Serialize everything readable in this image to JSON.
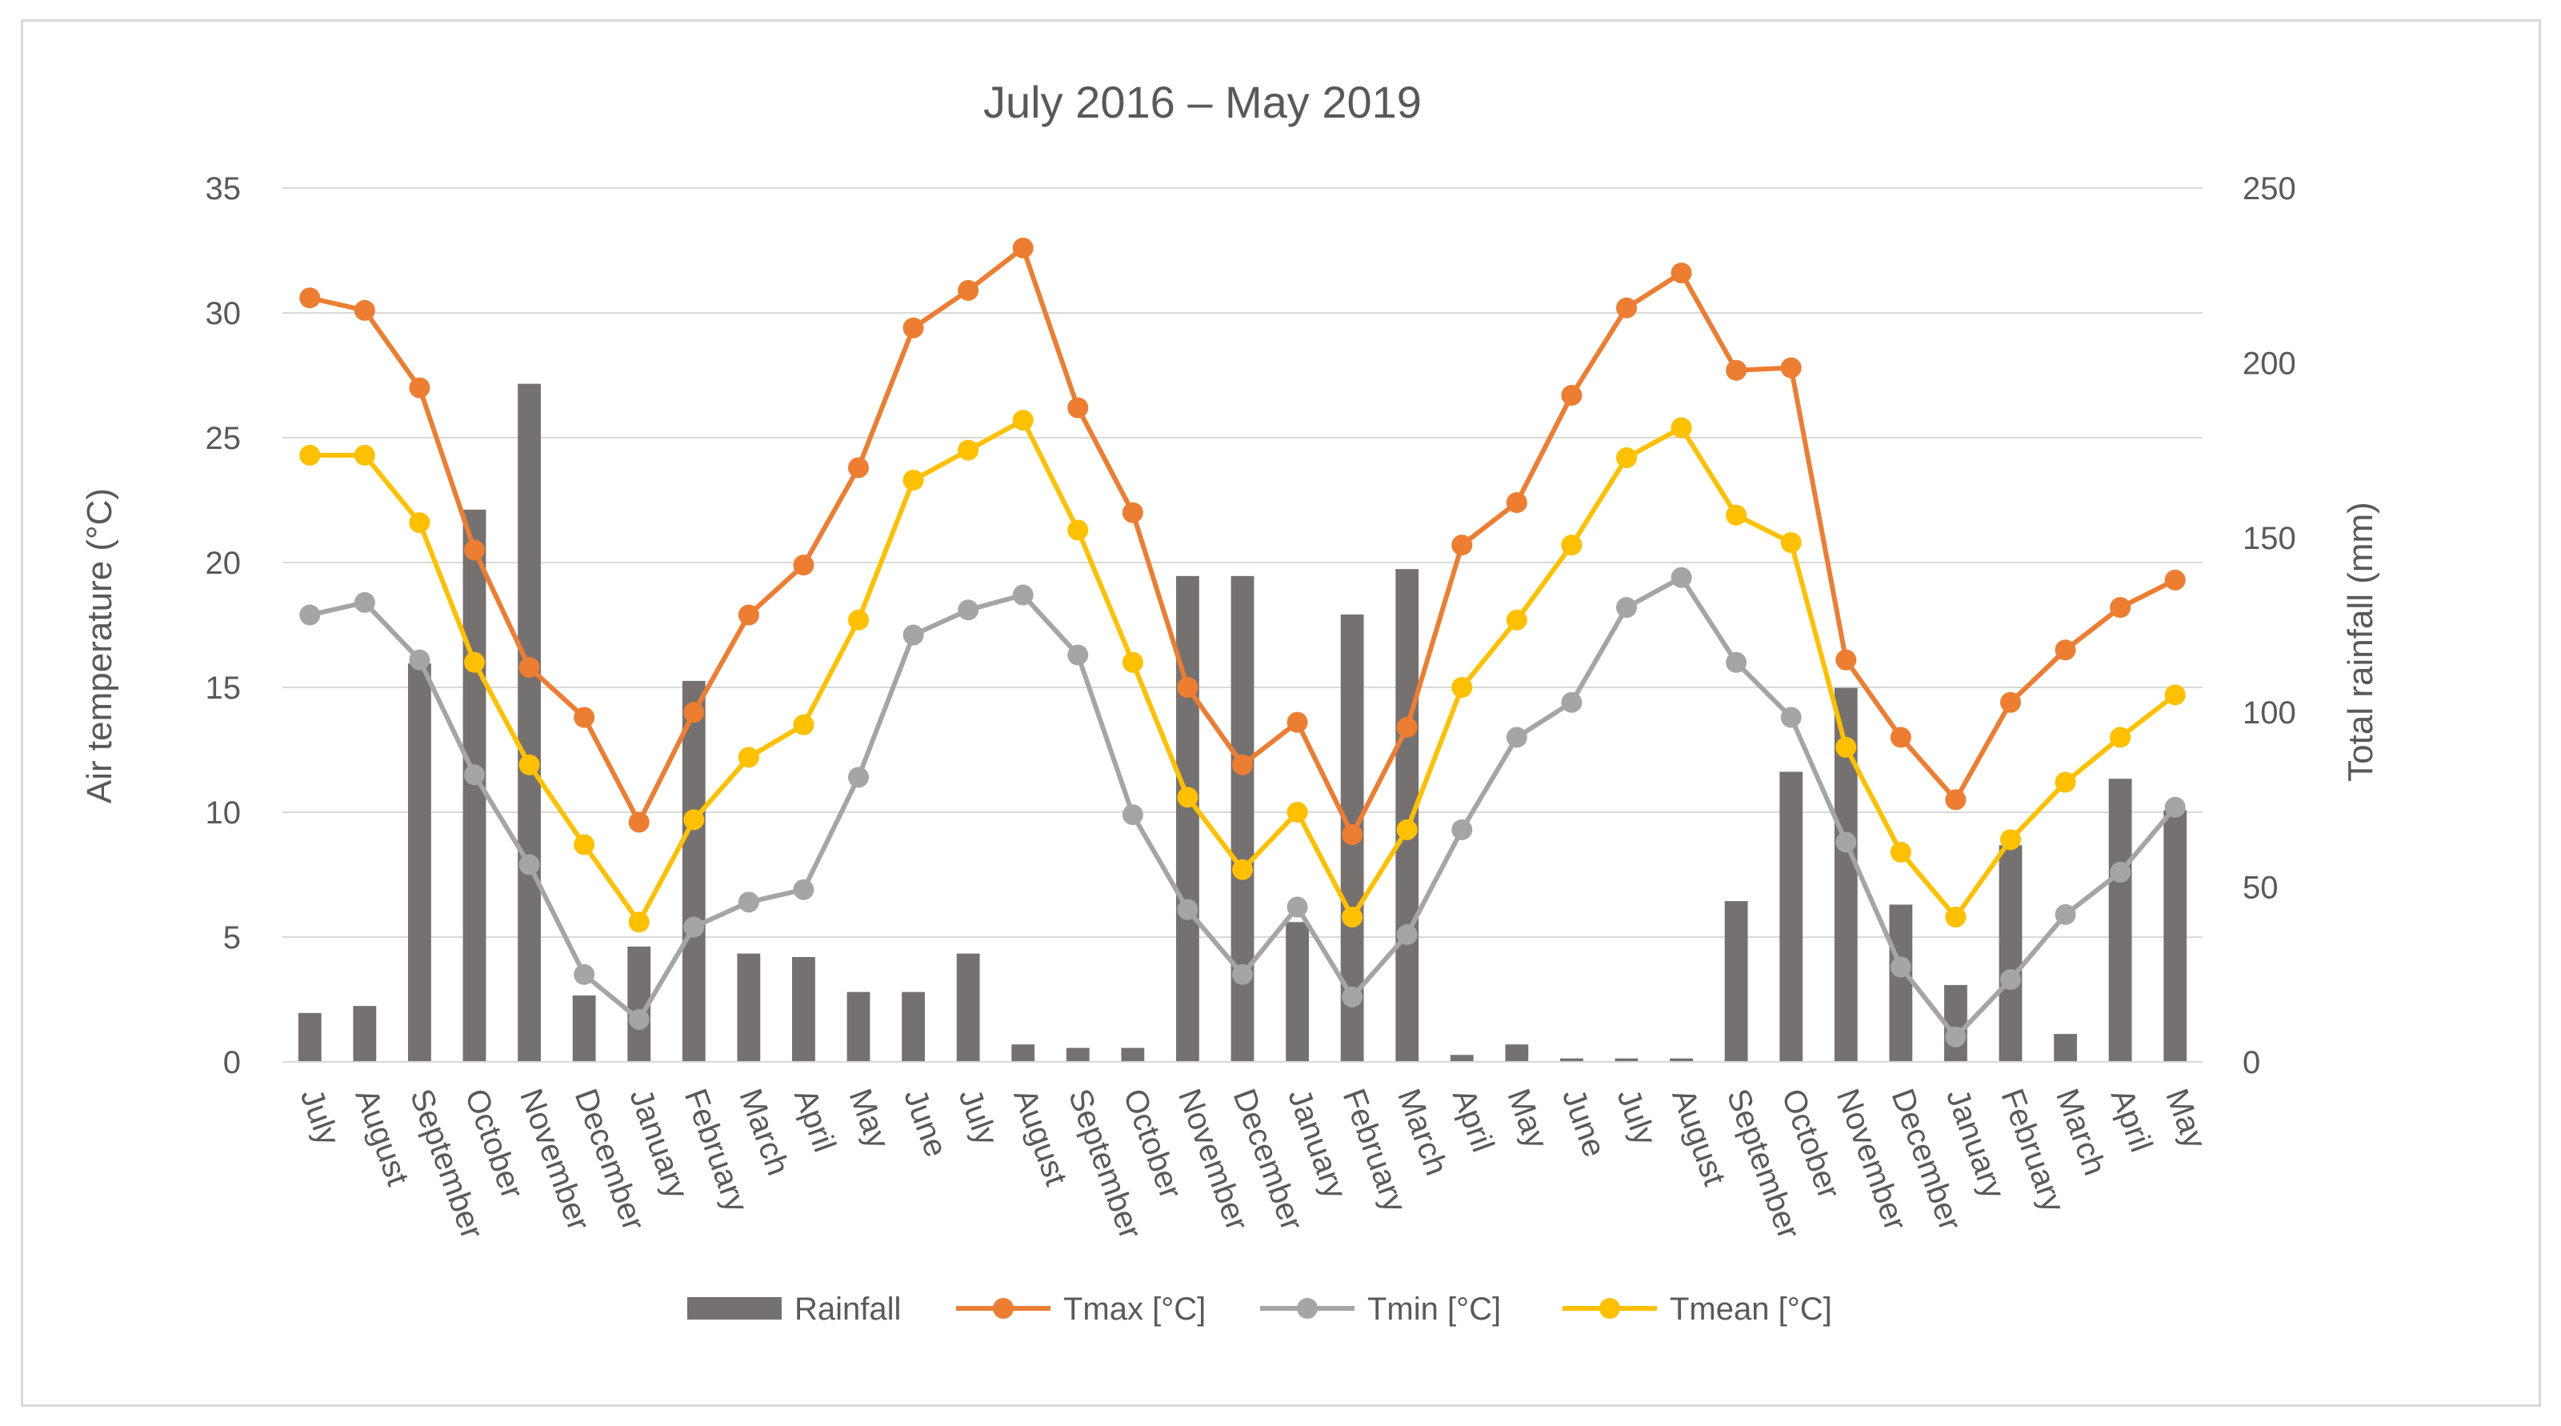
{
  "chart_data": {
    "type": "bar+line",
    "title": "July 2016 – May 2019",
    "ylabel_left": "Air temperature (°C)",
    "ylabel_right": "Total rainfall (mm)",
    "ylim_left": [
      0,
      35
    ],
    "ylim_right": [
      0,
      250
    ],
    "yticks_left": [
      "0",
      "5",
      "10",
      "15",
      "20",
      "25",
      "30",
      "35"
    ],
    "yticks_right": [
      "0",
      "50",
      "100",
      "150",
      "200",
      "250"
    ],
    "grid": true,
    "legend_position": "bottom",
    "categories": [
      "July",
      "August",
      "September",
      "October",
      "November",
      "December",
      "January",
      "February",
      "March",
      "April",
      "May",
      "June",
      "July",
      "August",
      "September",
      "October",
      "November",
      "December",
      "January",
      "February",
      "March",
      "April",
      "May",
      "June",
      "July",
      "August",
      "September",
      "October",
      "November",
      "December",
      "January",
      "February",
      "March",
      "April",
      "May"
    ],
    "series": [
      {
        "name": "Rainfall",
        "kind": "bar",
        "axis": "right",
        "color": "#767171",
        "values": [
          14,
          16,
          114,
          158,
          194,
          19,
          33,
          109,
          31,
          30,
          20,
          20,
          31,
          5,
          4,
          4,
          139,
          139,
          40,
          128,
          141,
          2,
          5,
          1,
          1,
          1,
          46,
          83,
          107,
          45,
          22,
          62,
          8,
          81,
          72
        ]
      },
      {
        "name": "Tmax [°C]",
        "kind": "line",
        "axis": "left",
        "color": "#ED7D31",
        "values": [
          30.6,
          30.1,
          27.0,
          20.5,
          15.8,
          13.8,
          9.6,
          14.0,
          17.9,
          19.9,
          23.8,
          29.4,
          30.9,
          32.6,
          26.2,
          22.0,
          15.0,
          11.9,
          13.6,
          9.1,
          13.4,
          20.7,
          22.4,
          26.7,
          30.2,
          31.6,
          27.7,
          27.8,
          16.1,
          13.0,
          10.5,
          14.4,
          16.5,
          18.2,
          19.3
        ]
      },
      {
        "name": "Tmin [°C]",
        "kind": "line",
        "axis": "left",
        "color": "#A5A5A5",
        "values": [
          17.9,
          18.4,
          16.1,
          11.5,
          7.9,
          3.5,
          1.7,
          5.4,
          6.4,
          6.9,
          11.4,
          17.1,
          18.1,
          18.7,
          16.3,
          9.9,
          6.1,
          3.5,
          6.2,
          2.6,
          5.1,
          9.3,
          13.0,
          14.4,
          18.2,
          19.4,
          16.0,
          13.8,
          8.8,
          3.8,
          1.0,
          3.3,
          5.9,
          7.6,
          10.2
        ]
      },
      {
        "name": "Tmean [°C]",
        "kind": "line",
        "axis": "left",
        "color": "#FFC000",
        "values": [
          24.3,
          24.3,
          21.6,
          16.0,
          11.9,
          8.7,
          5.6,
          9.7,
          12.2,
          13.5,
          17.7,
          23.3,
          24.5,
          25.7,
          21.3,
          16.0,
          10.6,
          7.7,
          10.0,
          5.8,
          9.3,
          15.0,
          17.7,
          20.7,
          24.2,
          25.4,
          21.9,
          20.8,
          12.6,
          8.4,
          5.8,
          8.9,
          11.2,
          13.0,
          14.7
        ]
      }
    ]
  }
}
